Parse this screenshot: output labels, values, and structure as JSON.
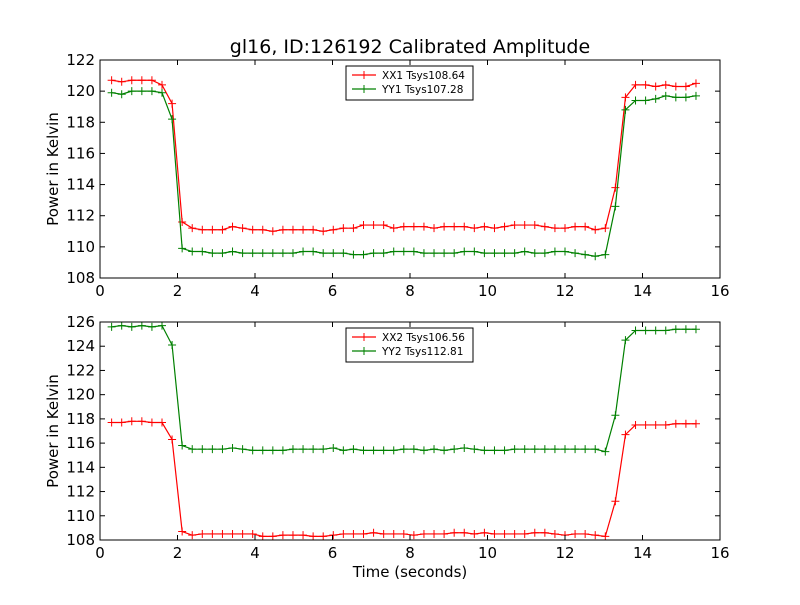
{
  "figure_title": "gl16, ID:126192 Calibrated Amplitude",
  "chart_data": [
    {
      "type": "line",
      "title": "gl16, ID:126192 Calibrated Amplitude",
      "xlabel": "",
      "ylabel": "Power in Kelvin",
      "xlim": [
        0,
        16
      ],
      "ylim": [
        108,
        122
      ],
      "xticks": [
        0,
        2,
        4,
        6,
        8,
        10,
        12,
        14,
        16
      ],
      "yticks": [
        108,
        110,
        112,
        114,
        116,
        118,
        120,
        122
      ],
      "grid": false,
      "legend_position": "top-center",
      "x": [
        0.3,
        0.56,
        0.82,
        1.08,
        1.34,
        1.6,
        1.86,
        2.12,
        2.38,
        2.64,
        2.9,
        3.16,
        3.42,
        3.68,
        3.94,
        4.2,
        4.46,
        4.72,
        4.98,
        5.24,
        5.5,
        5.76,
        6.02,
        6.28,
        6.54,
        6.8,
        7.06,
        7.32,
        7.58,
        7.84,
        8.1,
        8.36,
        8.62,
        8.88,
        9.14,
        9.4,
        9.66,
        9.92,
        10.18,
        10.44,
        10.7,
        10.96,
        11.22,
        11.48,
        11.74,
        12.0,
        12.26,
        12.52,
        12.78,
        13.04,
        13.3,
        13.56,
        13.82,
        14.08,
        14.34,
        14.6,
        14.86,
        15.12,
        15.38
      ],
      "series": [
        {
          "name": "XX1 Tsys108.64",
          "color": "#ff0000",
          "values": [
            120.7,
            120.6,
            120.7,
            120.7,
            120.7,
            120.4,
            119.2,
            111.6,
            111.2,
            111.1,
            111.1,
            111.1,
            111.3,
            111.2,
            111.1,
            111.1,
            111.0,
            111.1,
            111.1,
            111.1,
            111.1,
            111.0,
            111.1,
            111.2,
            111.2,
            111.4,
            111.4,
            111.4,
            111.2,
            111.3,
            111.3,
            111.3,
            111.2,
            111.3,
            111.3,
            111.3,
            111.2,
            111.3,
            111.2,
            111.3,
            111.4,
            111.4,
            111.4,
            111.3,
            111.2,
            111.2,
            111.3,
            111.3,
            111.1,
            111.2,
            113.8,
            119.6,
            120.4,
            120.4,
            120.3,
            120.4,
            120.3,
            120.3,
            120.5
          ]
        },
        {
          "name": "YY1 Tsys107.28",
          "color": "#008000",
          "values": [
            119.9,
            119.8,
            120.0,
            120.0,
            120.0,
            119.9,
            118.2,
            109.9,
            109.7,
            109.7,
            109.6,
            109.6,
            109.7,
            109.6,
            109.6,
            109.6,
            109.6,
            109.6,
            109.6,
            109.7,
            109.7,
            109.6,
            109.6,
            109.6,
            109.5,
            109.5,
            109.6,
            109.6,
            109.7,
            109.7,
            109.7,
            109.6,
            109.6,
            109.6,
            109.6,
            109.7,
            109.7,
            109.6,
            109.6,
            109.6,
            109.6,
            109.7,
            109.6,
            109.6,
            109.7,
            109.7,
            109.6,
            109.5,
            109.4,
            109.5,
            112.6,
            118.8,
            119.4,
            119.4,
            119.5,
            119.7,
            119.6,
            119.6,
            119.7
          ]
        }
      ]
    },
    {
      "type": "line",
      "title": "",
      "xlabel": "Time (seconds)",
      "ylabel": "Power in Kelvin",
      "xlim": [
        0,
        16
      ],
      "ylim": [
        108,
        126
      ],
      "xticks": [
        0,
        2,
        4,
        6,
        8,
        10,
        12,
        14,
        16
      ],
      "yticks": [
        108,
        110,
        112,
        114,
        116,
        118,
        120,
        122,
        124,
        126
      ],
      "grid": false,
      "legend_position": "top-center",
      "x": [
        0.3,
        0.56,
        0.82,
        1.08,
        1.34,
        1.6,
        1.86,
        2.12,
        2.38,
        2.64,
        2.9,
        3.16,
        3.42,
        3.68,
        3.94,
        4.2,
        4.46,
        4.72,
        4.98,
        5.24,
        5.5,
        5.76,
        6.02,
        6.28,
        6.54,
        6.8,
        7.06,
        7.32,
        7.58,
        7.84,
        8.1,
        8.36,
        8.62,
        8.88,
        9.14,
        9.4,
        9.66,
        9.92,
        10.18,
        10.44,
        10.7,
        10.96,
        11.22,
        11.48,
        11.74,
        12.0,
        12.26,
        12.52,
        12.78,
        13.04,
        13.3,
        13.56,
        13.82,
        14.08,
        14.34,
        14.6,
        14.86,
        15.12,
        15.38
      ],
      "series": [
        {
          "name": "XX2 Tsys106.56",
          "color": "#ff0000",
          "values": [
            117.7,
            117.7,
            117.8,
            117.8,
            117.7,
            117.7,
            116.3,
            108.7,
            108.4,
            108.5,
            108.5,
            108.5,
            108.5,
            108.5,
            108.5,
            108.3,
            108.3,
            108.4,
            108.4,
            108.4,
            108.3,
            108.3,
            108.4,
            108.5,
            108.5,
            108.5,
            108.6,
            108.5,
            108.5,
            108.5,
            108.4,
            108.5,
            108.5,
            108.5,
            108.6,
            108.6,
            108.5,
            108.6,
            108.5,
            108.5,
            108.5,
            108.5,
            108.6,
            108.6,
            108.5,
            108.4,
            108.5,
            108.5,
            108.4,
            108.3,
            111.2,
            116.7,
            117.5,
            117.5,
            117.5,
            117.5,
            117.6,
            117.6,
            117.6
          ]
        },
        {
          "name": "YY2 Tsys112.81",
          "color": "#008000",
          "values": [
            125.6,
            125.7,
            125.6,
            125.7,
            125.6,
            125.7,
            124.1,
            115.8,
            115.5,
            115.5,
            115.5,
            115.5,
            115.6,
            115.5,
            115.4,
            115.4,
            115.4,
            115.4,
            115.5,
            115.5,
            115.5,
            115.5,
            115.6,
            115.4,
            115.5,
            115.4,
            115.4,
            115.4,
            115.4,
            115.5,
            115.5,
            115.4,
            115.5,
            115.4,
            115.5,
            115.6,
            115.5,
            115.4,
            115.4,
            115.4,
            115.5,
            115.5,
            115.5,
            115.5,
            115.5,
            115.5,
            115.5,
            115.5,
            115.5,
            115.3,
            118.3,
            124.5,
            125.3,
            125.3,
            125.3,
            125.3,
            125.4,
            125.4,
            125.4
          ]
        }
      ]
    }
  ]
}
